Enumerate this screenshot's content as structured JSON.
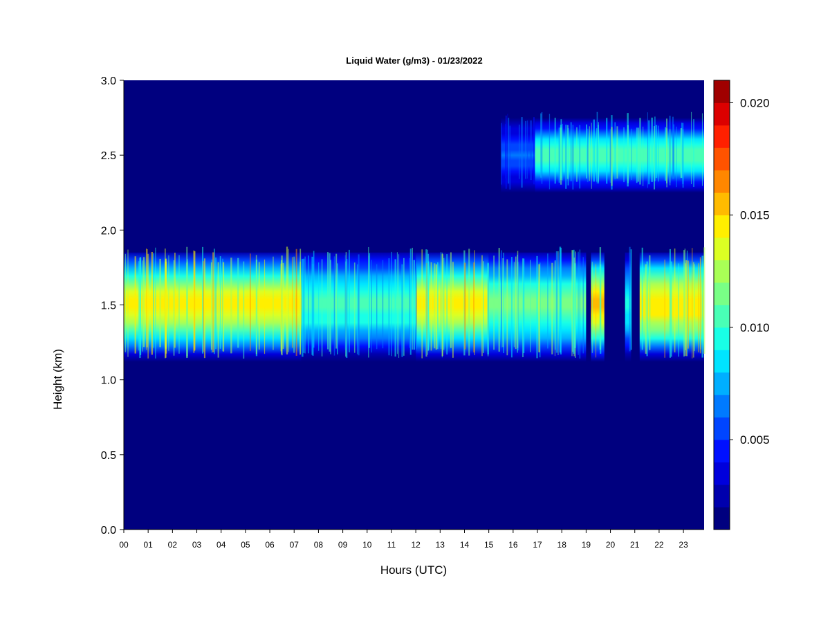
{
  "chart_data": {
    "type": "heatmap",
    "title": "Liquid Water (g/m3) - 01/23/2022",
    "xlabel": "Hours (UTC)",
    "ylabel": "Height (km)",
    "x_ticks": [
      "00",
      "01",
      "02",
      "03",
      "04",
      "05",
      "06",
      "07",
      "08",
      "09",
      "10",
      "11",
      "12",
      "13",
      "14",
      "15",
      "16",
      "17",
      "18",
      "19",
      "20",
      "21",
      "22",
      "23"
    ],
    "xlim": [
      0,
      23.85
    ],
    "y_ticks": [
      "0.0",
      "0.5",
      "1.0",
      "1.5",
      "2.0",
      "2.5",
      "3.0"
    ],
    "ylim": [
      0,
      3.0
    ],
    "colorbar": {
      "ticks": [
        "0.005",
        "0.010",
        "0.015",
        "0.020"
      ],
      "tick_values": [
        0.005,
        0.01,
        0.015,
        0.02
      ],
      "range": [
        0.001,
        0.021
      ],
      "levels": 20,
      "colors": [
        "#00007f",
        "#0000ad",
        "#0000dc",
        "#0010ff",
        "#0045ff",
        "#007aff",
        "#00afff",
        "#00e4ff",
        "#19ffe6",
        "#49ffb6",
        "#79ff86",
        "#a9ff56",
        "#dcff23",
        "#ffef00",
        "#ffbb00",
        "#ff8700",
        "#ff5300",
        "#ff2000",
        "#dc0000",
        "#a00000"
      ]
    },
    "layers": [
      {
        "name": "lower cloud layer",
        "y_range": [
          1.12,
          1.85
        ],
        "peak_height": 1.5,
        "segments": [
          {
            "x": [
              0.0,
              7.3
            ],
            "intensity": 0.0145
          },
          {
            "x": [
              7.3,
              12.0
            ],
            "intensity": 0.0105
          },
          {
            "x": [
              12.0,
              15.0
            ],
            "intensity": 0.0145
          },
          {
            "x": [
              15.0,
              19.0
            ],
            "intensity": 0.0115
          },
          {
            "x": [
              19.2,
              19.75
            ],
            "intensity": 0.0155
          },
          {
            "x": [
              20.6,
              20.85
            ],
            "intensity": 0.0095
          },
          {
            "x": [
              21.2,
              23.85
            ],
            "intensity": 0.015
          }
        ]
      },
      {
        "name": "upper cloud layer",
        "y_range": [
          2.25,
          2.75
        ],
        "peak_height": 2.5,
        "segments": [
          {
            "x": [
              15.5,
              16.9
            ],
            "intensity": 0.006
          },
          {
            "x": [
              16.9,
              23.85
            ],
            "intensity": 0.0105
          }
        ]
      }
    ]
  }
}
